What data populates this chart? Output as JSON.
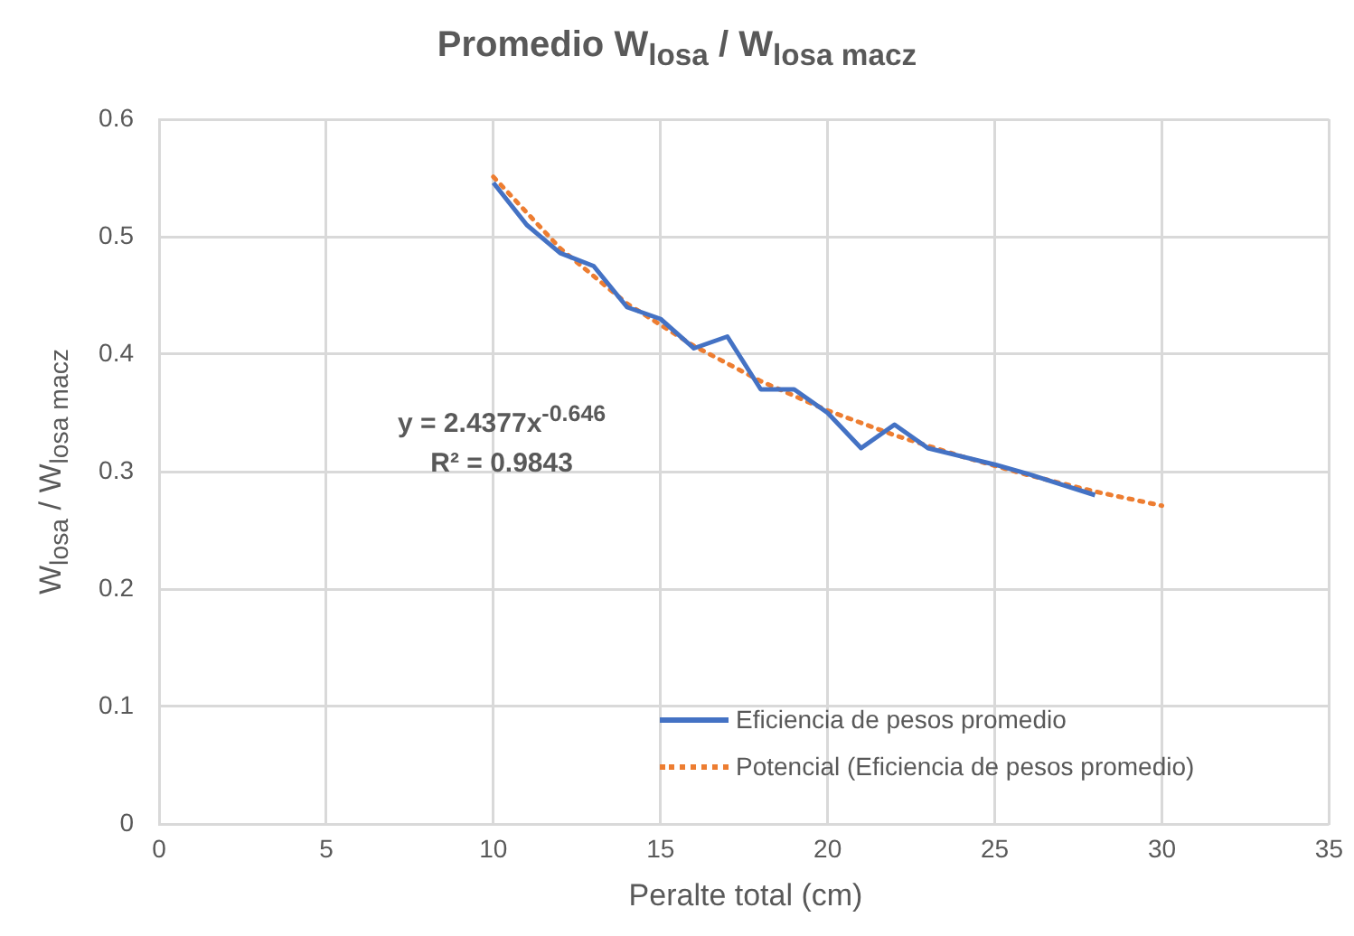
{
  "chart_data": {
    "type": "line",
    "title": "Promedio W$_{losa}$ / W$_{losa macz}$",
    "xlabel": "Peralte total (cm)",
    "ylabel": "W$_{losa}$ / W$_{losa macz}$",
    "xlim": [
      0,
      35
    ],
    "xticks": [
      0,
      5,
      10,
      15,
      20,
      25,
      30,
      35
    ],
    "ylim": [
      0,
      0.6
    ],
    "yticks": [
      0,
      0.1,
      0.2,
      0.3,
      0.4,
      0.5,
      0.6
    ],
    "grid": true,
    "legend": "bottom right",
    "marker": "none",
    "annotations": [
      "y = 2.4377x$^{-0.646}$",
      "R² = 0.9843"
    ],
    "series": [
      {
        "name": "Eficiencia de pesos promedio",
        "color": "#4472c4",
        "line_style": "solid",
        "x": [
          10,
          11,
          12,
          13,
          14,
          15,
          16,
          17,
          18,
          19,
          20,
          21,
          22,
          23,
          24,
          25,
          26,
          27,
          28
        ],
        "values": [
          0.546,
          0.51,
          0.486,
          0.475,
          0.44,
          0.43,
          0.405,
          0.415,
          0.37,
          0.37,
          0.35,
          0.32,
          0.34,
          0.32,
          0.313,
          0.306,
          0.298,
          0.289,
          0.28
        ]
      },
      {
        "name": "Potencial (Eficiencia de pesos promedio)",
        "color": "#ed7d31",
        "line_style": "dotted",
        "x": [
          10,
          12,
          14,
          16,
          18,
          20,
          22,
          24,
          26,
          28,
          30
        ],
        "values": [
          0.551,
          0.49,
          0.443,
          0.407,
          0.377,
          0.352,
          0.331,
          0.313,
          0.297,
          0.283,
          0.271
        ]
      }
    ]
  }
}
